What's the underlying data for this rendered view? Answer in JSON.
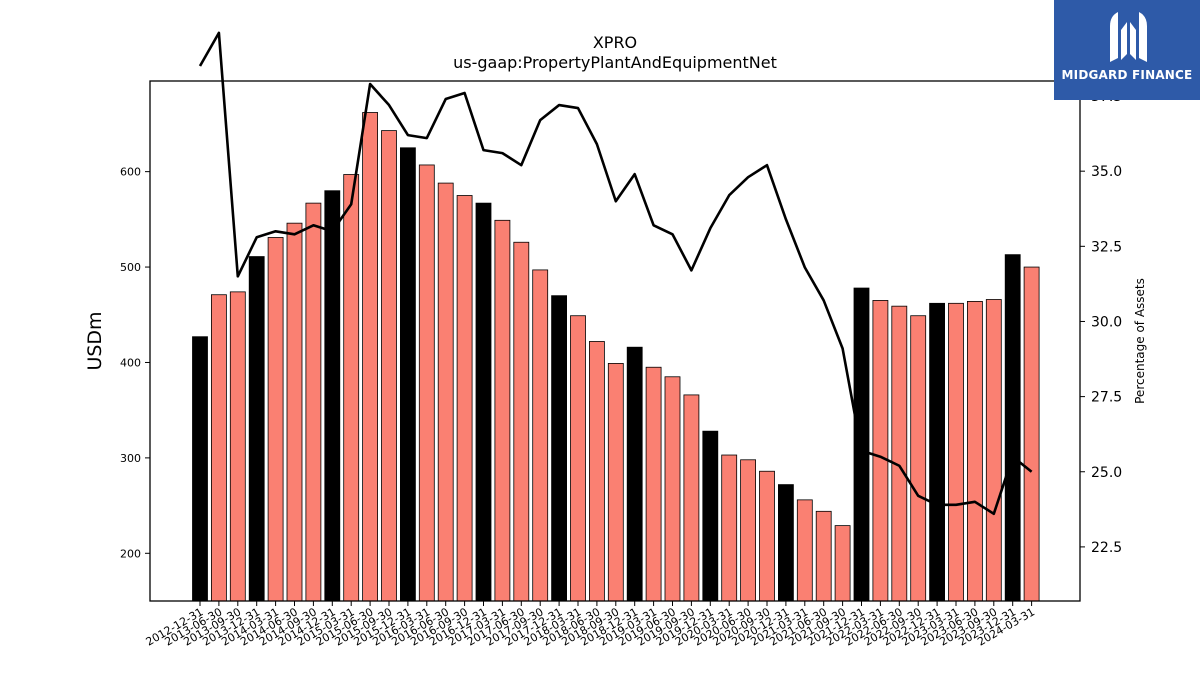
{
  "chart_data": {
    "type": "bar",
    "title": "XPRO",
    "subtitle": "us-gaap:PropertyPlantAndEquipmentNet",
    "ylabel": "USDm",
    "y2label": "Percentage of Assets",
    "ylim": [
      150,
      695
    ],
    "y2lim": [
      20.7,
      38.0
    ],
    "yticks": [
      200,
      300,
      400,
      500,
      600
    ],
    "y2ticks": [
      22.5,
      25.0,
      27.5,
      30.0,
      32.5,
      35.0,
      37.5
    ],
    "categories": [
      "2012-12-31",
      "2013-06-30",
      "2013-09-30",
      "2013-12-31",
      "2014-03-31",
      "2014-06-30",
      "2014-09-30",
      "2014-12-31",
      "2015-03-31",
      "2015-06-30",
      "2015-09-30",
      "2015-12-31",
      "2016-03-31",
      "2016-06-30",
      "2016-09-30",
      "2016-12-31",
      "2017-03-31",
      "2017-06-30",
      "2017-09-30",
      "2017-12-31",
      "2018-03-31",
      "2018-06-30",
      "2018-09-30",
      "2018-12-31",
      "2019-03-31",
      "2019-06-30",
      "2019-09-30",
      "2019-12-31",
      "2020-03-31",
      "2020-06-30",
      "2020-09-30",
      "2020-12-31",
      "2021-03-31",
      "2021-06-30",
      "2021-09-30",
      "2021-12-31",
      "2022-03-31",
      "2022-06-30",
      "2022-09-30",
      "2022-12-31",
      "2023-03-31",
      "2023-06-30",
      "2023-09-30",
      "2023-12-31",
      "2024-03-31"
    ],
    "series": [
      {
        "kind": "bar",
        "values": [
          427,
          471,
          474,
          511,
          531,
          546,
          567,
          580,
          597,
          662,
          643,
          625,
          607,
          588,
          575,
          567,
          549,
          526,
          497,
          470,
          449,
          422,
          399,
          416,
          395,
          385,
          366,
          328,
          303,
          298,
          286,
          272,
          256,
          244,
          229,
          478,
          465,
          459,
          449,
          462,
          462,
          464,
          466,
          513,
          500
        ],
        "bar_type": [
          "annual",
          "quarterly",
          "quarterly",
          "annual",
          "quarterly",
          "quarterly",
          "quarterly",
          "annual",
          "quarterly",
          "quarterly",
          "quarterly",
          "annual",
          "quarterly",
          "quarterly",
          "quarterly",
          "annual",
          "quarterly",
          "quarterly",
          "quarterly",
          "annual",
          "quarterly",
          "quarterly",
          "quarterly",
          "annual",
          "quarterly",
          "quarterly",
          "quarterly",
          "annual",
          "quarterly",
          "quarterly",
          "quarterly",
          "annual",
          "quarterly",
          "quarterly",
          "quarterly",
          "annual",
          "quarterly",
          "quarterly",
          "quarterly",
          "annual",
          "quarterly",
          "quarterly",
          "quarterly",
          "annual",
          "quarterly"
        ]
      },
      {
        "kind": "line",
        "axis": "right",
        "values": [
          38.5,
          39.6,
          31.5,
          32.8,
          33.0,
          32.9,
          33.2,
          33.0,
          33.9,
          37.9,
          37.2,
          36.2,
          36.1,
          37.4,
          37.6,
          35.7,
          35.6,
          35.2,
          36.7,
          37.2,
          37.1,
          35.9,
          34.0,
          34.9,
          33.2,
          32.9,
          31.7,
          33.1,
          34.2,
          34.8,
          35.2,
          33.4,
          31.8,
          30.7,
          29.1,
          25.7,
          25.5,
          25.2,
          24.2,
          23.9,
          23.9,
          24.0,
          23.6,
          25.5,
          25.0
        ]
      }
    ],
    "colors": {
      "annual": "#000000",
      "quarterly": "#fa8072",
      "line": "#000000"
    },
    "legend": "none",
    "grid": false
  },
  "logo": {
    "text": "MIDGARD FINANCE",
    "bg_color": "#2e5aa8",
    "icon": "midgard-logo-icon"
  }
}
